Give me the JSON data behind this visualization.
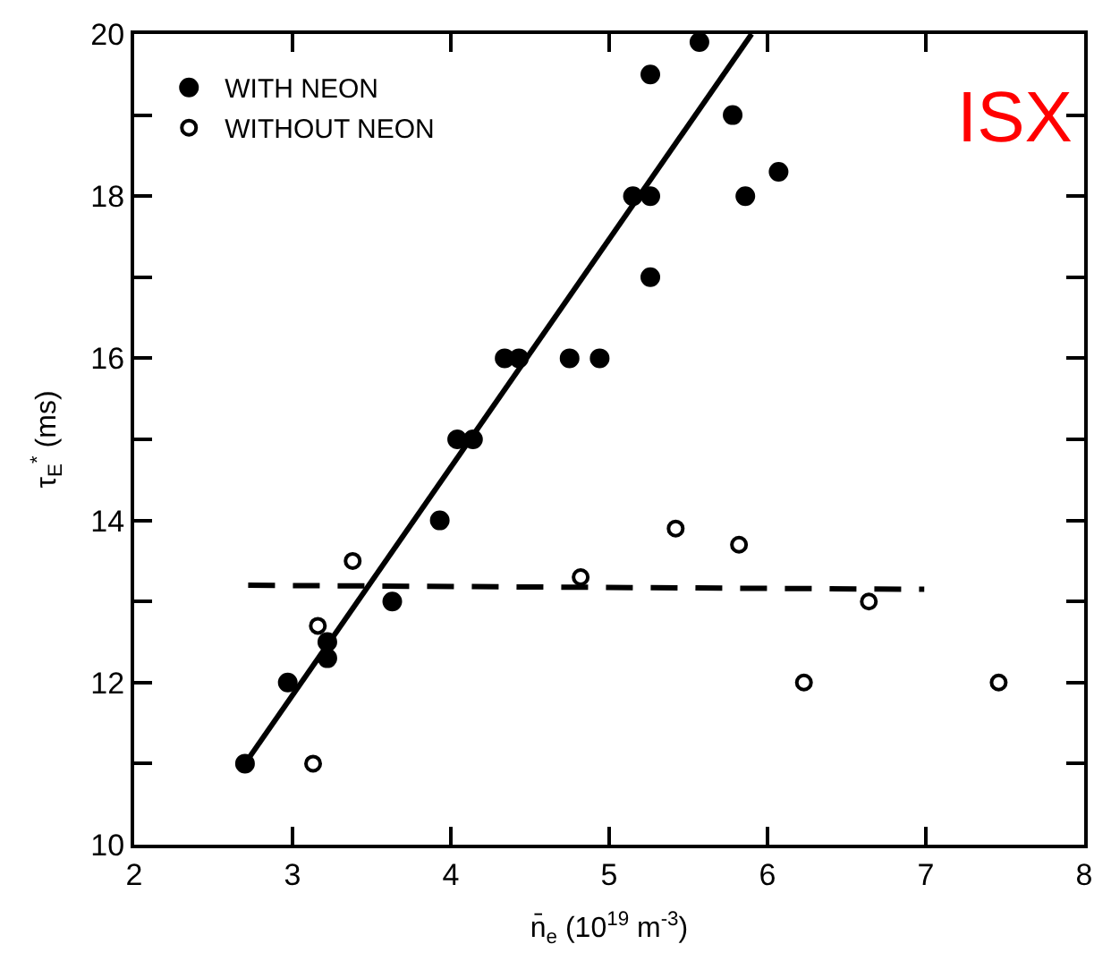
{
  "chart_data": {
    "type": "scatter",
    "xlabel": "n̄$_{e}$ (10$^{19}$ m$^{-3}$)",
    "ylabel": "τ$_{E}$$^{*}$ (ms)",
    "xlim": [
      2,
      8
    ],
    "xticks": [
      2,
      3,
      4,
      5,
      6,
      7,
      8
    ],
    "ylim": [
      10,
      20
    ],
    "yticks": [
      10,
      {
        "value": 11,
        "label": null
      },
      12,
      {
        "value": 13,
        "label": null
      },
      14,
      {
        "value": 15,
        "label": null
      },
      16,
      {
        "value": 17,
        "label": null
      },
      18,
      {
        "value": 19,
        "label": null
      },
      20
    ],
    "legend": "top left",
    "series": [
      {
        "name": "WITH NEON",
        "color": "#000000",
        "marker": "circle",
        "x": [
          2.7,
          2.97,
          3.22,
          3.22,
          3.63,
          3.93,
          4.04,
          4.14,
          4.34,
          4.43,
          4.75,
          4.94,
          5.15,
          5.26,
          5.26,
          5.26,
          5.57,
          5.78,
          5.86,
          6.07
        ],
        "values": [
          11.0,
          12.0,
          12.5,
          12.3,
          13.0,
          14.0,
          15.0,
          15.0,
          16.0,
          16.0,
          16.0,
          16.0,
          18.0,
          18.0,
          17.0,
          19.5,
          19.9,
          19.0,
          18.0,
          18.3
        ]
      },
      {
        "name": "WITHOUT NEON",
        "color": "#000000",
        "marker": "circle-open",
        "x": [
          3.13,
          3.16,
          3.38,
          4.82,
          5.42,
          5.82,
          6.23,
          6.64,
          7.46
        ],
        "values": [
          11.0,
          12.7,
          13.5,
          13.3,
          13.9,
          13.7,
          12.0,
          13.0,
          12.0
        ]
      },
      {
        "type": "line",
        "color": "#000000",
        "line_style": "solid",
        "x": [
          2.7,
          5.9
        ],
        "values": [
          11.0,
          20.0
        ]
      },
      {
        "type": "line",
        "color": "#000000",
        "line_style": "dashed",
        "x": [
          2.72,
          6.99
        ],
        "values": [
          13.2,
          13.15
        ]
      }
    ],
    "annotations": [
      "ISX"
    ]
  }
}
